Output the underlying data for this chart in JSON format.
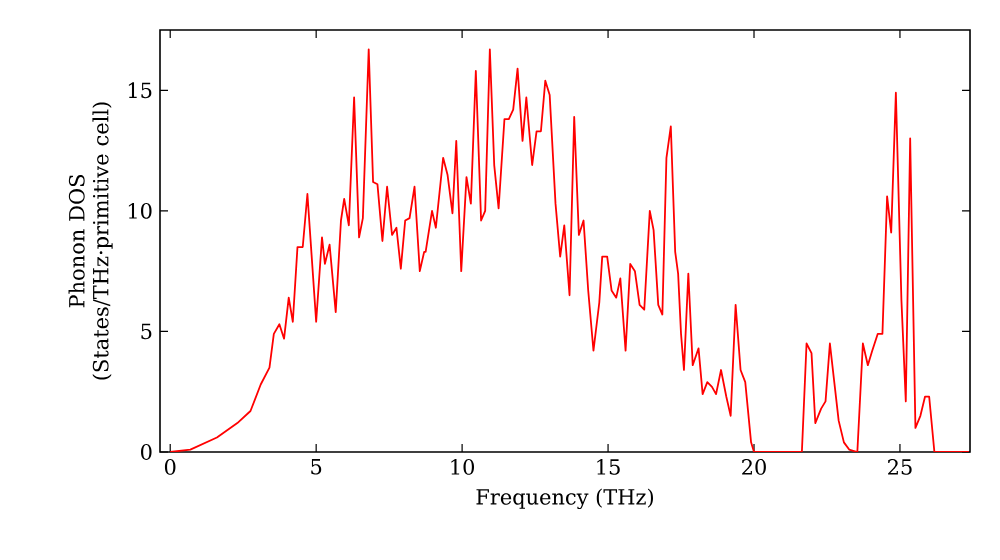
{
  "chart_data": {
    "type": "line",
    "xlabel": "Frequency (THz)",
    "ylabel": "Phonon DOS (States/THz·primitive cell)",
    "xlim": [
      -0.35,
      27.4
    ],
    "ylim": [
      0,
      17.5
    ],
    "xticks": [
      0,
      5,
      10,
      15,
      20,
      25
    ],
    "yticks": [
      0,
      5,
      10,
      15
    ],
    "series": [
      {
        "color": "#ff0000",
        "x": [
          0,
          0.69,
          1.6,
          2.3,
          2.75,
          3.1,
          3.4,
          3.55,
          3.74,
          3.9,
          4.06,
          4.2,
          4.36,
          4.54,
          4.7,
          5.0,
          5.2,
          5.3,
          5.46,
          5.67,
          5.85,
          5.96,
          6.12,
          6.3,
          6.47,
          6.6,
          6.8,
          6.95,
          7.1,
          7.27,
          7.43,
          7.6,
          7.75,
          7.9,
          8.05,
          8.2,
          8.37,
          8.55,
          8.7,
          8.75,
          8.97,
          9.1,
          9.35,
          9.5,
          9.67,
          9.8,
          9.97,
          10.15,
          10.3,
          10.47,
          10.65,
          10.79,
          10.95,
          11.1,
          11.25,
          11.45,
          11.6,
          11.75,
          11.9,
          12.07,
          12.2,
          12.4,
          12.55,
          12.7,
          12.85,
          13.0,
          13.2,
          13.36,
          13.5,
          13.68,
          13.84,
          14.0,
          14.16,
          14.32,
          14.5,
          14.7,
          14.8,
          14.97,
          15.12,
          15.28,
          15.42,
          15.6,
          15.76,
          15.92,
          16.08,
          16.24,
          16.43,
          16.56,
          16.72,
          16.86,
          17.0,
          17.15,
          17.3,
          17.4,
          17.5,
          17.6,
          17.75,
          17.9,
          18.1,
          18.24,
          18.4,
          18.56,
          18.7,
          18.87,
          19.05,
          19.2,
          19.37,
          19.54,
          19.7,
          19.9,
          20.0,
          21.64,
          21.8,
          21.97,
          22.1,
          22.3,
          22.45,
          22.6,
          22.75,
          22.9,
          23.08,
          23.26,
          23.54,
          23.73,
          23.9,
          24.05,
          24.24,
          24.4,
          24.56,
          24.7,
          24.86,
          25.05,
          25.2,
          25.35,
          25.53,
          25.7,
          25.86,
          26.0,
          26.18,
          27.36
        ],
        "values": [
          0,
          0.1,
          0.6,
          1.2,
          1.7,
          2.8,
          3.5,
          4.9,
          5.3,
          4.7,
          6.4,
          5.4,
          8.5,
          8.5,
          10.7,
          5.4,
          8.9,
          7.8,
          8.6,
          5.8,
          9.6,
          10.5,
          9.4,
          14.7,
          8.9,
          9.7,
          16.7,
          11.2,
          11.1,
          8.75,
          11.0,
          9.0,
          9.3,
          7.6,
          9.6,
          9.7,
          11.0,
          7.5,
          8.3,
          8.3,
          10.0,
          9.3,
          12.2,
          11.5,
          9.9,
          12.9,
          7.5,
          11.4,
          10.3,
          15.8,
          9.6,
          10.0,
          16.7,
          11.9,
          10.1,
          13.8,
          13.8,
          14.2,
          15.9,
          12.9,
          14.7,
          11.9,
          13.3,
          13.3,
          15.4,
          14.8,
          10.3,
          8.1,
          9.4,
          6.5,
          13.9,
          9.0,
          9.6,
          6.7,
          4.2,
          6.2,
          8.1,
          8.1,
          6.7,
          6.4,
          7.2,
          4.2,
          7.8,
          7.5,
          6.1,
          5.9,
          10.0,
          9.2,
          6.1,
          5.7,
          12.2,
          13.5,
          8.3,
          7.4,
          4.9,
          3.4,
          7.4,
          3.6,
          4.3,
          2.4,
          2.9,
          2.7,
          2.4,
          3.4,
          2.3,
          1.5,
          6.1,
          3.4,
          2.9,
          0.4,
          0,
          0,
          4.5,
          4.1,
          1.2,
          1.8,
          2.1,
          4.5,
          2.9,
          1.3,
          0.4,
          0.1,
          0,
          4.5,
          3.6,
          4.2,
          4.9,
          4.9,
          10.6,
          9.1,
          14.9,
          6.3,
          2.1,
          13.0,
          1.0,
          1.5,
          2.3,
          2.3,
          0,
          0
        ]
      }
    ]
  }
}
